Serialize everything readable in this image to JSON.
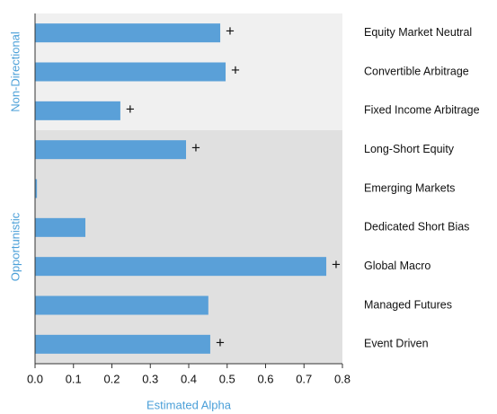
{
  "chart_data": {
    "type": "barh",
    "categories": [
      "Equity Market Neutral",
      "Convertible Arbitrage",
      "Fixed Income Arbitrage",
      "Long-Short Equity",
      "Emerging Markets",
      "Dedicated Short Bias",
      "Global Macro",
      "Managed Futures",
      "Event Driven"
    ],
    "values": [
      0.482,
      0.496,
      0.222,
      0.393,
      0.005,
      0.131,
      0.758,
      0.451,
      0.456
    ],
    "markers": [
      "+",
      "+",
      "+",
      "+",
      null,
      null,
      "+",
      null,
      "+"
    ],
    "groups": [
      {
        "name": "Non-Directional",
        "start": 0,
        "end": 2,
        "color": "#f0f0f0"
      },
      {
        "name": "Opportunistic",
        "start": 3,
        "end": 8,
        "color": "#e0e0e0"
      }
    ],
    "color": "#5aa0d8",
    "xlabel": "Estimated Alpha",
    "xlim": [
      0,
      0.8
    ],
    "xticks": [
      {
        "value": 0,
        "label": "0.0"
      },
      0.1,
      0.2,
      0.3,
      0.4,
      0.5,
      0.6,
      0.7,
      0.8
    ]
  }
}
